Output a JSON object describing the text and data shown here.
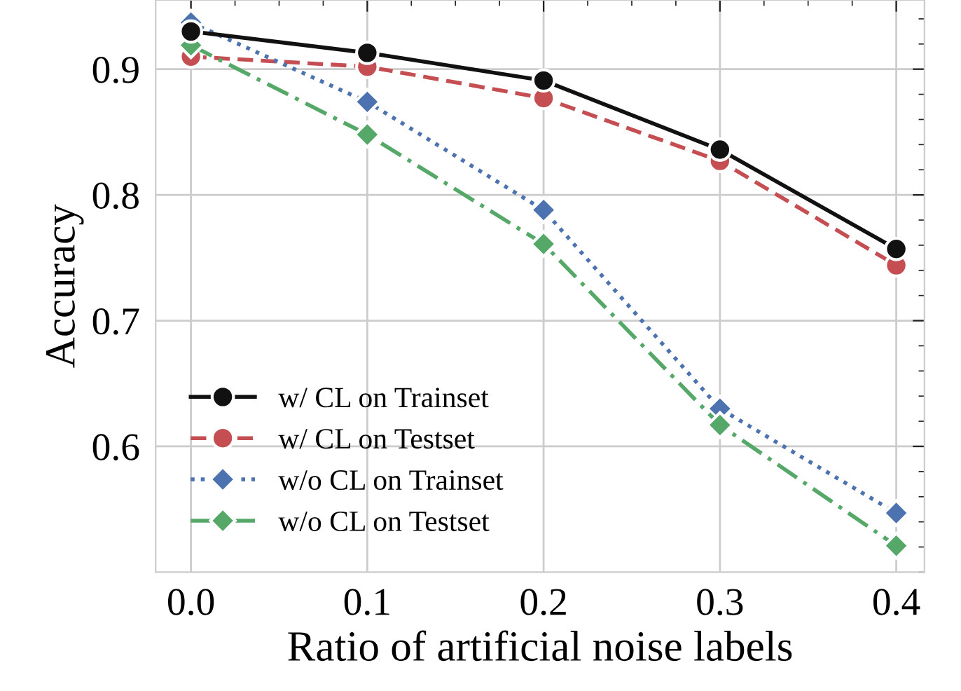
{
  "chart_data": {
    "type": "line",
    "xlabel": "Ratio of artificial noise labels",
    "ylabel": "Accuracy",
    "x": [
      0.0,
      0.1,
      0.2,
      0.3,
      0.4
    ],
    "series": [
      {
        "name": "w/ CL on Trainset",
        "color": "#111111",
        "marker": "circle",
        "line_style": "solid",
        "values": [
          0.93,
          0.913,
          0.891,
          0.836,
          0.757
        ]
      },
      {
        "name": "w/ CL on Testset",
        "color": "#c44e52",
        "marker": "circle",
        "line_style": "dashed",
        "values": [
          0.91,
          0.902,
          0.877,
          0.827,
          0.744
        ]
      },
      {
        "name": "w/o CL on Trainset",
        "color": "#4c72b0",
        "marker": "diamond",
        "line_style": "dotted",
        "values": [
          0.937,
          0.874,
          0.788,
          0.63,
          0.547
        ]
      },
      {
        "name": "w/o CL on Testset",
        "color": "#55a868",
        "marker": "diamond",
        "line_style": "dashdot",
        "values": [
          0.919,
          0.848,
          0.761,
          0.617,
          0.521
        ]
      }
    ],
    "xlim": [
      -0.02,
      0.416
    ],
    "ylim": [
      0.5,
      0.955
    ],
    "xticks": [
      {
        "value": 0.0,
        "label": "0.0"
      },
      0.1,
      0.2,
      0.3,
      0.4
    ],
    "yticks": [
      0.6,
      0.7,
      0.8,
      0.9
    ],
    "grid": true,
    "legend": "bottom left"
  }
}
